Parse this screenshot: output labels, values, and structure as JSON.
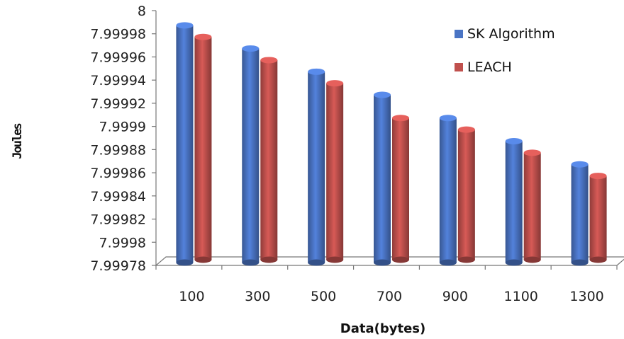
{
  "chart_data": {
    "type": "bar",
    "title": "",
    "xlabel": "Data(bytes)",
    "ylabel": "Joules",
    "categories": [
      "100",
      "300",
      "500",
      "700",
      "900",
      "1100",
      "1300"
    ],
    "yticks": [
      "7.99978",
      "7.9998",
      "7.99982",
      "7.99984",
      "7.99986",
      "7.99988",
      "7.9999",
      "7.99992",
      "7.99994",
      "7.99996",
      "7.99998",
      "8"
    ],
    "ylim": [
      7.99978,
      8.0
    ],
    "series": [
      {
        "name": "SK Algorithm",
        "color": "#4a74c4",
        "values": [
          7.99999,
          7.99997,
          7.99995,
          7.99993,
          7.99991,
          7.99989,
          7.99987
        ]
      },
      {
        "name": "LEACH",
        "color": "#c0504d",
        "values": [
          7.99998,
          7.99996,
          7.99994,
          7.99991,
          7.9999,
          7.99988,
          7.99986
        ]
      }
    ],
    "legend": "right",
    "grid": false
  }
}
